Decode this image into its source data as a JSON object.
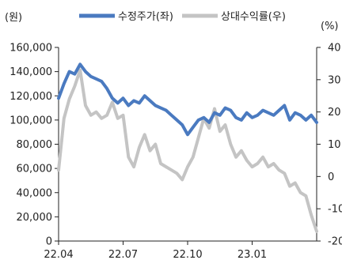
{
  "chart_data": {
    "type": "line",
    "left_unit": "(원)",
    "right_unit": "(%)",
    "x_ticks": [
      "22.04",
      "22.07",
      "22.10",
      "23.01"
    ],
    "y_left_ticks": [
      "0",
      "20,000",
      "40,000",
      "60,000",
      "80,000",
      "100,000",
      "120,000",
      "140,000",
      "160,000"
    ],
    "y_right_ticks": [
      "-20",
      "-10",
      "0",
      "10",
      "20",
      "30",
      "40"
    ],
    "ylim_left": [
      0,
      160000
    ],
    "ylim_right": [
      -20,
      40
    ],
    "grid": false,
    "legend_position": "top",
    "series": [
      {
        "name": "수정주가(좌)",
        "axis": "left",
        "color": "#4a7ac0",
        "x": [
          "22.04",
          "22.04.08",
          "22.04.15",
          "22.04.22",
          "22.05",
          "22.05.08",
          "22.05.15",
          "22.05.22",
          "22.06",
          "22.06.08",
          "22.06.15",
          "22.06.22",
          "22.07",
          "22.07.08",
          "22.07.15",
          "22.07.22",
          "22.08",
          "22.08.08",
          "22.08.15",
          "22.08.22",
          "22.09",
          "22.09.08",
          "22.09.15",
          "22.09.22",
          "22.10",
          "22.10.08",
          "22.10.15",
          "22.10.22",
          "22.11",
          "22.11.08",
          "22.11.15",
          "22.11.22",
          "22.12",
          "22.12.08",
          "22.12.15",
          "22.12.22",
          "23.01",
          "23.01.08",
          "23.01.15",
          "23.01.22",
          "23.02",
          "23.02.08",
          "23.02.15",
          "23.02.22",
          "23.03",
          "23.03.08",
          "23.03.15",
          "23.03.22",
          "23.03.29"
        ],
        "values": [
          118000,
          130000,
          140000,
          138000,
          146000,
          140000,
          136000,
          134000,
          132000,
          126000,
          118000,
          114000,
          118000,
          112000,
          116000,
          114000,
          120000,
          116000,
          112000,
          110000,
          108000,
          104000,
          100000,
          96000,
          88000,
          94000,
          100000,
          102000,
          98000,
          106000,
          104000,
          110000,
          108000,
          102000,
          100000,
          106000,
          102000,
          104000,
          108000,
          106000,
          104000,
          108000,
          112000,
          100000,
          106000,
          104000,
          100000,
          104000,
          98000
        ]
      },
      {
        "name": "상대수익률(우)",
        "axis": "right",
        "color": "#c4c4c4",
        "x": [
          "22.04",
          "22.04.08",
          "22.04.15",
          "22.04.22",
          "22.05",
          "22.05.08",
          "22.05.15",
          "22.05.22",
          "22.06",
          "22.06.08",
          "22.06.15",
          "22.06.22",
          "22.07",
          "22.07.08",
          "22.07.15",
          "22.07.22",
          "22.08",
          "22.08.08",
          "22.08.15",
          "22.08.22",
          "22.09",
          "22.09.08",
          "22.09.15",
          "22.09.22",
          "22.10",
          "22.10.08",
          "22.10.15",
          "22.10.22",
          "22.11",
          "22.11.08",
          "22.11.15",
          "22.11.22",
          "22.12",
          "22.12.08",
          "22.12.15",
          "22.12.22",
          "23.01",
          "23.01.08",
          "23.01.15",
          "23.01.22",
          "23.02",
          "23.02.08",
          "23.02.15",
          "23.02.22",
          "23.03",
          "23.03.08",
          "23.03.15",
          "23.03.22",
          "23.03.29"
        ],
        "values": [
          2,
          18,
          24,
          28,
          33,
          22,
          19,
          20,
          18,
          19,
          23,
          18,
          19,
          6,
          3,
          9,
          13,
          8,
          10,
          4,
          3,
          2,
          1,
          -1,
          3,
          6,
          12,
          18,
          15,
          21,
          14,
          16,
          10,
          6,
          8,
          5,
          3,
          4,
          6,
          3,
          4,
          2,
          1,
          -3,
          -2,
          -5,
          -6,
          -12,
          -17
        ]
      }
    ]
  }
}
